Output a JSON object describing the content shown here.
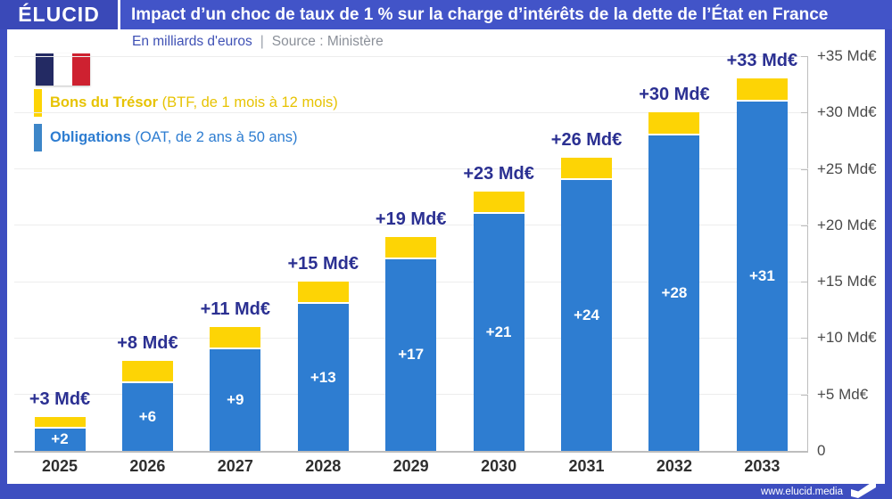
{
  "brand": {
    "logo_text": "ÉLUCID",
    "footer_url": "www.elucid.media"
  },
  "header": {
    "title": "Impact d’un choc de taux de 1 % sur la charge d’intérêts de la dette de l’État en France"
  },
  "subtitle": {
    "units": "En milliards d'euros",
    "separator": "|",
    "source": "Source : Ministère"
  },
  "legend": {
    "btf": {
      "name": "Bons du Trésor",
      "detail": "(BTF, de 1 mois à 12 mois)",
      "color": "#fdd405"
    },
    "oat": {
      "name": "Obligations",
      "detail": "(OAT, de 2 ans à 50 ans)",
      "color": "#2e7dd1"
    }
  },
  "colors": {
    "header_blue": "#4254c8",
    "logo_blue": "#3a49b8",
    "frame_blue": "#3d4ec0",
    "bar_blue": "#2e7dd1",
    "bar_yellow": "#fdd405",
    "total_label_navy": "#2b3092",
    "flag_navy": "#232a63",
    "flag_red": "#ce2130"
  },
  "chart_data": {
    "type": "bar",
    "stacked": true,
    "title": "Impact d’un choc de taux de 1 % sur la charge d’intérêts de la dette de l’État en France",
    "unit": "Md€",
    "categories": [
      "2025",
      "2026",
      "2027",
      "2028",
      "2029",
      "2030",
      "2031",
      "2032",
      "2033"
    ],
    "series": [
      {
        "name": "Obligations (OAT, de 2 ans à 50 ans)",
        "color": "#2e7dd1",
        "values": [
          2,
          6,
          9,
          13,
          17,
          21,
          24,
          28,
          31
        ],
        "labels": [
          "+2",
          "+6",
          "+9",
          "+13",
          "+17",
          "+21",
          "+24",
          "+28",
          "+31"
        ]
      },
      {
        "name": "Bons du Trésor (BTF, de 1 mois à 12 mois)",
        "color": "#fdd405",
        "values": [
          1,
          2,
          2,
          2,
          2,
          2,
          2,
          2,
          2
        ]
      }
    ],
    "totals": [
      3,
      8,
      11,
      15,
      19,
      23,
      26,
      30,
      33
    ],
    "total_labels": [
      "+3 Md€",
      "+8 Md€",
      "+11 Md€",
      "+15 Md€",
      "+19 Md€",
      "+23 Md€",
      "+26 Md€",
      "+30 Md€",
      "+33 Md€"
    ],
    "ylim": [
      0,
      35
    ],
    "ytick_step": 5,
    "ytick_labels": [
      "0",
      "+5 Md€",
      "+10 Md€",
      "+15 Md€",
      "+20 Md€",
      "+25 Md€",
      "+30 Md€",
      "+35 Md€"
    ],
    "grid": true,
    "legend_position": "top-left",
    "yaxis_side": "right"
  }
}
